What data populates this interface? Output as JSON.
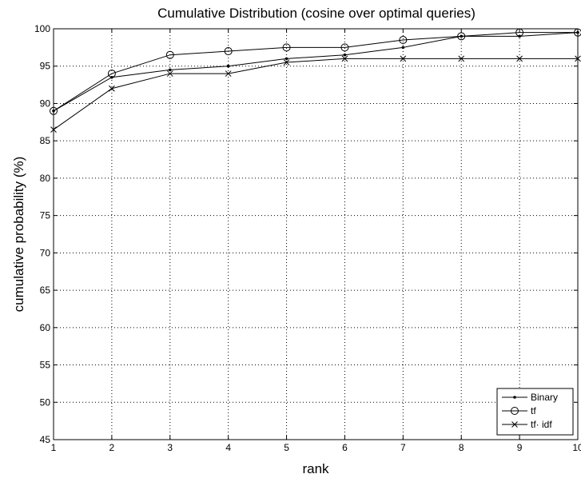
{
  "chart_data": {
    "type": "line",
    "title": "Cumulative Distribution (cosine over optimal queries)",
    "xlabel": "rank",
    "ylabel": "cumulative probability (%)",
    "x": [
      1,
      2,
      3,
      4,
      5,
      6,
      7,
      8,
      9,
      10
    ],
    "xlim": [
      1,
      10
    ],
    "ylim": [
      45,
      100
    ],
    "xticks": [
      1,
      2,
      3,
      4,
      5,
      6,
      7,
      8,
      9,
      10
    ],
    "yticks": [
      45,
      50,
      55,
      60,
      65,
      70,
      75,
      80,
      85,
      90,
      95,
      100
    ],
    "grid": true,
    "legend_position": "bottom-right",
    "series": [
      {
        "name": "Binary",
        "marker": "dot",
        "values": [
          89,
          93.5,
          94.5,
          95,
          96,
          96.5,
          97.5,
          99,
          99,
          99.5
        ]
      },
      {
        "name": "tf",
        "marker": "circle",
        "values": [
          89,
          94,
          96.5,
          97,
          97.5,
          97.5,
          98.5,
          99,
          99.5,
          99.5
        ]
      },
      {
        "name": "tf· idf",
        "marker": "x",
        "values": [
          86.5,
          92,
          94,
          94,
          95.5,
          96,
          96,
          96,
          96,
          96
        ]
      }
    ]
  }
}
